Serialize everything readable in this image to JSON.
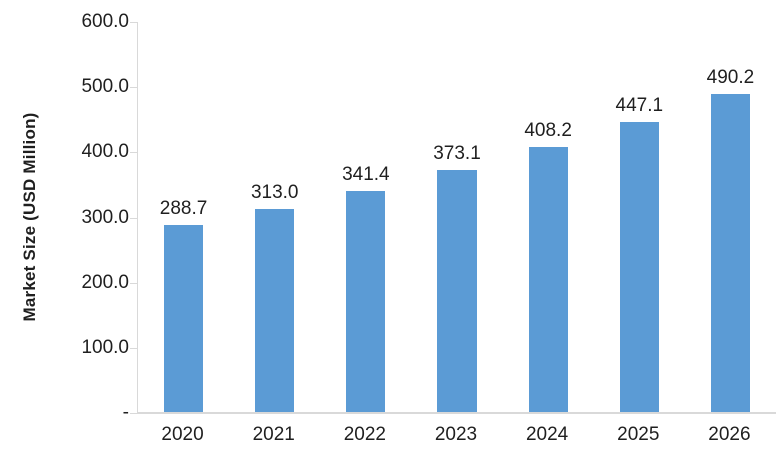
{
  "chart_data": {
    "type": "bar",
    "title": "",
    "xlabel": "",
    "ylabel": "Market Size (USD Million)",
    "categories": [
      "2020",
      "2021",
      "2022",
      "2023",
      "2024",
      "2025",
      "2026"
    ],
    "values": [
      288.7,
      313.0,
      341.4,
      373.1,
      408.2,
      447.1,
      490.2
    ],
    "value_labels": [
      "288.7",
      "313.0",
      "341.4",
      "373.1",
      "408.2",
      "447.1",
      "490.2"
    ],
    "ylim": [
      0,
      600
    ],
    "yticks": [
      {
        "value": 600,
        "label": "600.0"
      },
      {
        "value": 500,
        "label": "500.0"
      },
      {
        "value": 400,
        "label": "400.0"
      },
      {
        "value": 300,
        "label": "300.0"
      },
      {
        "value": 200,
        "label": "200.0"
      },
      {
        "value": 100,
        "label": "100.0"
      },
      {
        "value": 0,
        "label": "-"
      }
    ],
    "grid": false,
    "legend": false,
    "bar_color": "#5B9BD5",
    "axis_color": "#D9D9D9",
    "text_color": "#1F1F1F"
  }
}
